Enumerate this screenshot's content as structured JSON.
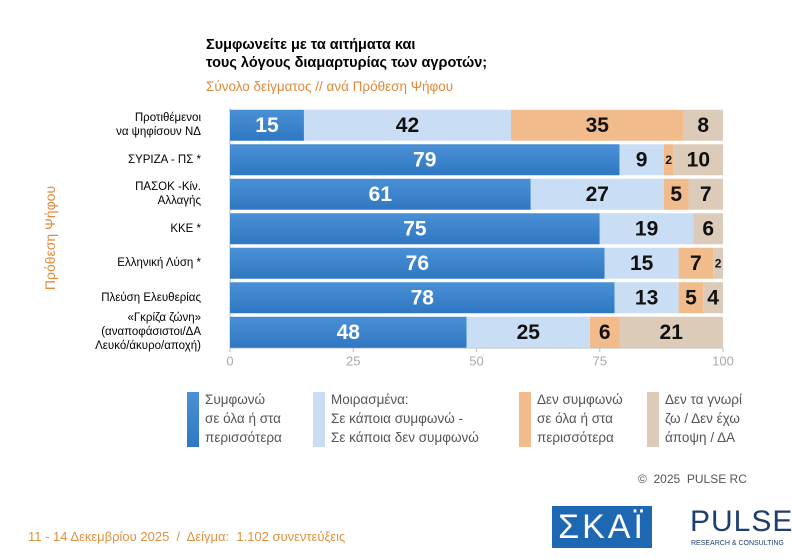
{
  "chart_data": {
    "type": "stacked-bar-horizontal",
    "title": "Συμφωνείτε με τα αιτήματα και\nτους λόγους διαμαρτυρίας των αγροτών;",
    "subtitle": "Σύνολο δείγματος // ανά Πρόθεση Ψήφου",
    "y_label": "Πρόθεση Ψήφου",
    "categories": [
      "Προτιθέμενοι\nνα ψηφίσουν ΝΔ",
      "ΣΥΡΙΖΑ - ΠΣ *",
      "ΠΑΣΟΚ -Κίν.\nΑλλαγής",
      "ΚΚΕ *",
      "Ελληνική Λύση *",
      "Πλεύση Ελευθερίας",
      "«Γκρίζα ζώνη»\n(αναποφάσιστοι/ΔΑ\nΛευκό/άκυρο/αποχή)"
    ],
    "series": [
      {
        "name": "Συμφωνώ\nσε όλα ή στα\nπερισσότερα",
        "color": "#2f78c2",
        "values": [
          15,
          79,
          61,
          75,
          76,
          78,
          48
        ]
      },
      {
        "name": "Μοιρασμένα:\nΣε κάποια συμφωνώ -\nΣε κάποια δεν συμφωνώ",
        "color": "#c9def4",
        "values": [
          42,
          9,
          27,
          19,
          15,
          13,
          25
        ]
      },
      {
        "name": "Δεν συμφωνώ\nσε όλα ή στα\nπερισσότερα",
        "color": "#f1bb8c",
        "values": [
          35,
          2,
          5,
          null,
          7,
          5,
          6
        ]
      },
      {
        "name": "Δεν τα γνωρί\nζω / Δεν έχω\nάποψη / ΔΑ",
        "color": "#dccbb8",
        "values": [
          8,
          10,
          7,
          6,
          2,
          4,
          21
        ]
      }
    ],
    "xlim": [
      0,
      100
    ],
    "xticks": [
      0,
      25,
      50,
      75,
      100
    ],
    "footer": "11 - 14 Δεκεμβρίου 2025  /  Δείγμα:  1.102 συνεντεύξεις",
    "copyright": "©  2025  PULSE RC",
    "logo_left": "ΣΚΑΪ",
    "logo_right": "PULSE",
    "logo_right_sub": "RESEARCH & CONSULTING"
  }
}
